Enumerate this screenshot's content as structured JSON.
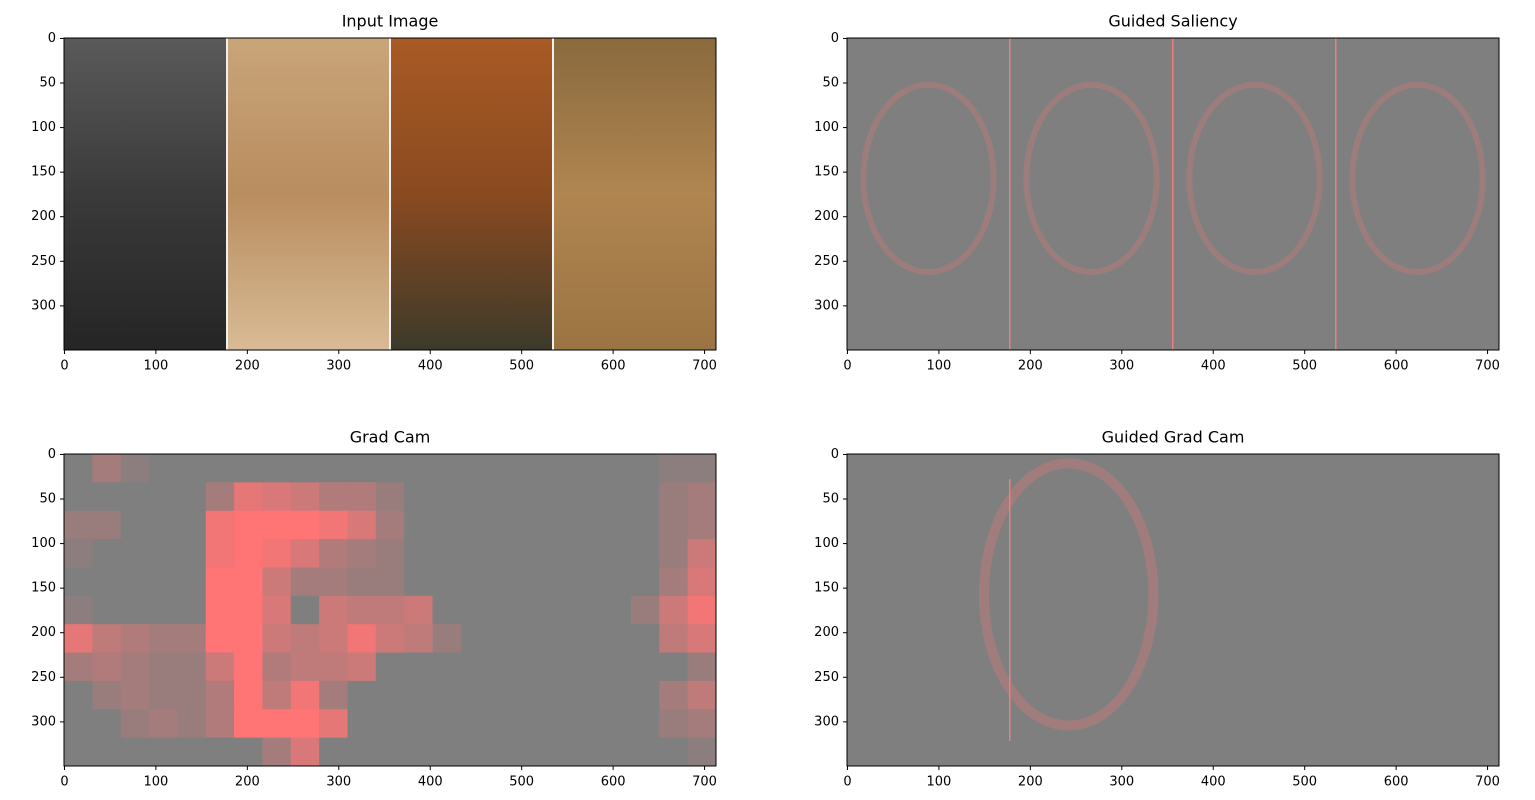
{
  "chart_data": [
    {
      "type": "image",
      "title": "Input Image",
      "xlim": [
        -0.5,
        712.5
      ],
      "ylim": [
        349.5,
        -0.5
      ],
      "xticks": [
        0,
        100,
        200,
        300,
        400,
        500,
        600,
        700
      ],
      "yticks": [
        0,
        50,
        100,
        150,
        200,
        250,
        300
      ]
    },
    {
      "type": "image",
      "title": "Guided Saliency",
      "xlim": [
        -0.5,
        712.5
      ],
      "ylim": [
        349.5,
        -0.5
      ],
      "xticks": [
        0,
        100,
        200,
        300,
        400,
        500,
        600,
        700
      ],
      "yticks": [
        0,
        50,
        100,
        150,
        200,
        250,
        300
      ]
    },
    {
      "type": "heatmap",
      "title": "Grad Cam",
      "xlim": [
        -0.5,
        712.5
      ],
      "ylim": [
        349.5,
        -0.5
      ],
      "xticks": [
        0,
        100,
        200,
        300,
        400,
        500,
        600,
        700
      ],
      "yticks": [
        0,
        50,
        100,
        150,
        200,
        250,
        300
      ],
      "cmap": [
        "#7f7f7f",
        "#ff7575"
      ],
      "values": [
        [
          0,
          0.3,
          0.1,
          0,
          0,
          0,
          0,
          0,
          0,
          0,
          0,
          0,
          0,
          0,
          0,
          0,
          0,
          0,
          0,
          0,
          0,
          0.1,
          0.1
        ],
        [
          0,
          0,
          0,
          0,
          0,
          0.3,
          0.8,
          0.7,
          0.6,
          0.4,
          0.4,
          0.2,
          0,
          0,
          0,
          0,
          0,
          0,
          0,
          0,
          0,
          0.2,
          0.3
        ],
        [
          0.2,
          0.2,
          0,
          0,
          0,
          0.9,
          1,
          1,
          1,
          0.9,
          0.7,
          0.3,
          0,
          0,
          0,
          0,
          0,
          0,
          0,
          0,
          0,
          0.2,
          0.3
        ],
        [
          0.1,
          0,
          0,
          0,
          0,
          0.9,
          1,
          0.9,
          0.7,
          0.4,
          0.3,
          0.2,
          0,
          0,
          0,
          0,
          0,
          0,
          0,
          0,
          0,
          0.2,
          0.6
        ],
        [
          0,
          0,
          0,
          0,
          0,
          1,
          1,
          0.6,
          0.3,
          0.3,
          0.2,
          0.2,
          0,
          0,
          0,
          0,
          0,
          0,
          0,
          0,
          0,
          0.3,
          0.7
        ],
        [
          0.1,
          0,
          0,
          0,
          0,
          1,
          1,
          0.7,
          0,
          0.6,
          0.5,
          0.5,
          0.6,
          0,
          0,
          0,
          0,
          0,
          0,
          0,
          0.2,
          0.6,
          0.9
        ],
        [
          0.8,
          0.5,
          0.4,
          0.3,
          0.3,
          1,
          1,
          0.6,
          0.5,
          0.6,
          0.9,
          0.6,
          0.5,
          0.2,
          0,
          0,
          0,
          0,
          0,
          0,
          0,
          0.5,
          0.7
        ],
        [
          0.3,
          0.4,
          0.3,
          0.2,
          0.2,
          0.6,
          1,
          0.4,
          0.5,
          0.5,
          0.6,
          0,
          0,
          0,
          0,
          0,
          0,
          0,
          0,
          0,
          0,
          0,
          0.2
        ],
        [
          0,
          0.2,
          0.3,
          0.2,
          0.2,
          0.4,
          1,
          0.5,
          0.9,
          0.3,
          0,
          0,
          0,
          0,
          0,
          0,
          0,
          0,
          0,
          0,
          0,
          0.3,
          0.5
        ],
        [
          0,
          0,
          0.2,
          0.3,
          0.2,
          0.4,
          1,
          1,
          1,
          0.8,
          0,
          0,
          0,
          0,
          0,
          0,
          0,
          0,
          0,
          0,
          0,
          0.2,
          0.3
        ],
        [
          0,
          0,
          0,
          0,
          0,
          0,
          0,
          0.3,
          0.7,
          0,
          0,
          0,
          0,
          0,
          0,
          0,
          0,
          0,
          0,
          0,
          0,
          0,
          0.1
        ]
      ]
    },
    {
      "type": "image",
      "title": "Guided Grad Cam",
      "xlim": [
        -0.5,
        712.5
      ],
      "ylim": [
        349.5,
        -0.5
      ],
      "xticks": [
        0,
        100,
        200,
        300,
        400,
        500,
        600,
        700
      ],
      "yticks": [
        0,
        50,
        100,
        150,
        200,
        250,
        300
      ]
    }
  ]
}
